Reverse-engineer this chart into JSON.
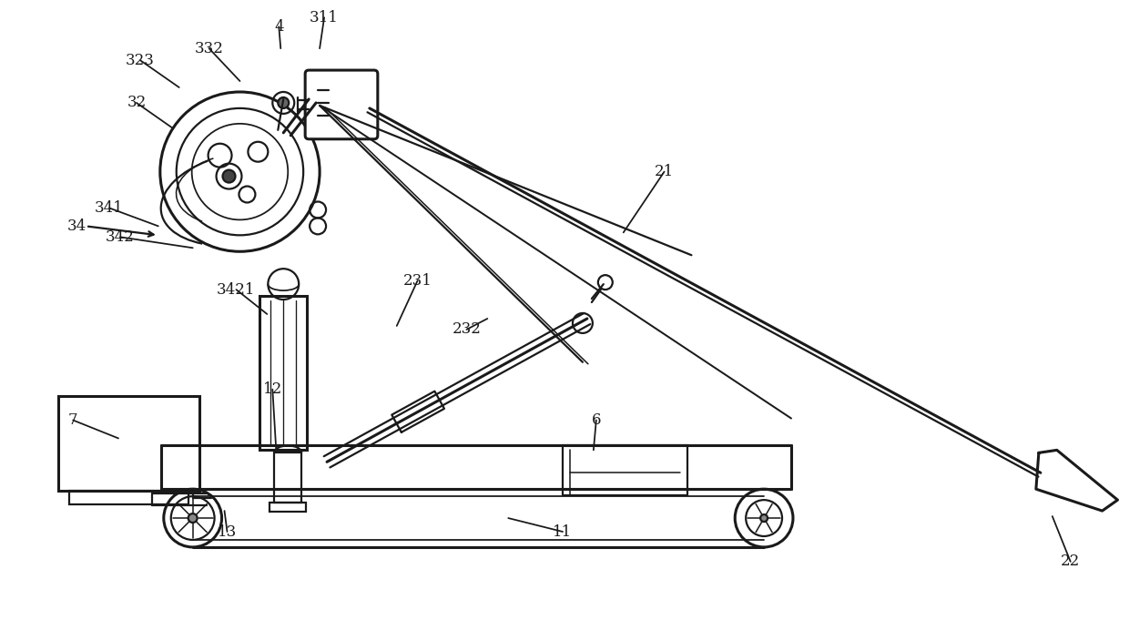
{
  "bg_color": "#ffffff",
  "line_color": "#1a1a1a",
  "lw": 1.6,
  "tlw": 2.2,
  "figsize": [
    12.4,
    6.81
  ],
  "dpi": 100,
  "labels": [
    [
      "4",
      305,
      28
    ],
    [
      "311",
      355,
      18
    ],
    [
      "332",
      228,
      52
    ],
    [
      "323",
      152,
      65
    ],
    [
      "32",
      148,
      112
    ],
    [
      "34",
      82,
      248
    ],
    [
      "341",
      118,
      228
    ],
    [
      "342",
      130,
      260
    ],
    [
      "3421",
      258,
      318
    ],
    [
      "231",
      458,
      308
    ],
    [
      "232",
      512,
      362
    ],
    [
      "21",
      730,
      188
    ],
    [
      "22",
      1178,
      618
    ],
    [
      "7",
      78,
      462
    ],
    [
      "12",
      298,
      428
    ],
    [
      "13",
      248,
      585
    ],
    [
      "11",
      618,
      585
    ],
    [
      "6",
      655,
      462
    ]
  ],
  "leader_lines": [
    [
      305,
      28,
      307,
      52
    ],
    [
      355,
      18,
      350,
      52
    ],
    [
      228,
      52,
      262,
      88
    ],
    [
      152,
      65,
      195,
      95
    ],
    [
      148,
      112,
      188,
      140
    ],
    [
      118,
      228,
      172,
      248
    ],
    [
      130,
      260,
      210,
      272
    ],
    [
      258,
      318,
      292,
      345
    ],
    [
      458,
      308,
      435,
      358
    ],
    [
      512,
      362,
      535,
      350
    ],
    [
      730,
      188,
      685,
      255
    ],
    [
      1178,
      618,
      1158,
      568
    ],
    [
      78,
      462,
      128,
      482
    ],
    [
      298,
      428,
      302,
      495
    ],
    [
      248,
      585,
      245,
      562
    ],
    [
      618,
      585,
      558,
      570
    ],
    [
      655,
      462,
      652,
      495
    ]
  ]
}
